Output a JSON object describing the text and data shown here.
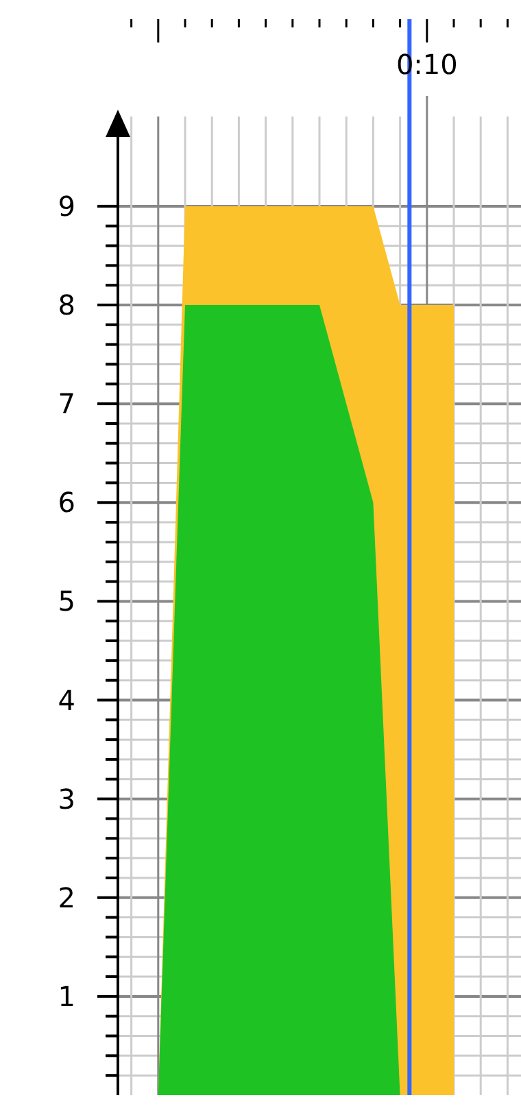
{
  "chart_data": {
    "type": "area",
    "categories": [
      null,
      null,
      null,
      null,
      null,
      null,
      null,
      null,
      null,
      null,
      null,
      "0:10",
      null,
      null,
      null
    ],
    "ylim": [
      0,
      9.7
    ],
    "yticks": [
      {
        "value": 0.2,
        "label": null
      },
      {
        "value": 0.4,
        "label": null
      },
      {
        "value": 0.6,
        "label": null
      },
      {
        "value": 0.8,
        "label": null
      },
      1,
      {
        "value": 1.2,
        "label": null
      },
      {
        "value": 1.4,
        "label": null
      },
      {
        "value": 1.6,
        "label": null
      },
      {
        "value": 1.8,
        "label": null
      },
      2,
      {
        "value": 2.2,
        "label": null
      },
      {
        "value": 2.4,
        "label": null
      },
      {
        "value": 2.6,
        "label": null
      },
      {
        "value": 2.8,
        "label": null
      },
      3,
      {
        "value": 3.2,
        "label": null
      },
      {
        "value": 3.4,
        "label": null
      },
      {
        "value": 3.6,
        "label": null
      },
      {
        "value": 3.8,
        "label": null
      },
      4,
      {
        "value": 4.2,
        "label": null
      },
      {
        "value": 4.4,
        "label": null
      },
      {
        "value": 4.6,
        "label": null
      },
      {
        "value": 4.8,
        "label": null
      },
      5,
      {
        "value": 5.2,
        "label": null
      },
      {
        "value": 5.4,
        "label": null
      },
      {
        "value": 5.6,
        "label": null
      },
      {
        "value": 5.8,
        "label": null
      },
      6,
      {
        "value": 6.2,
        "label": null
      },
      {
        "value": 6.4,
        "label": null
      },
      {
        "value": 6.6,
        "label": null
      },
      {
        "value": 6.8,
        "label": null
      },
      7,
      {
        "value": 7.2,
        "label": null
      },
      {
        "value": 7.4,
        "label": null
      },
      {
        "value": 7.6,
        "label": null
      },
      {
        "value": 7.8,
        "label": null
      },
      8,
      {
        "value": 8.2,
        "label": null
      },
      {
        "value": 8.4,
        "label": null
      },
      {
        "value": 8.6,
        "label": null
      },
      {
        "value": 8.8,
        "label": null
      },
      9
    ],
    "grid": true,
    "series": [
      {
        "color": "#fcc22c",
        "values": [
          null,
          0,
          9,
          9,
          9,
          9,
          9,
          9,
          9,
          9,
          8,
          8,
          8,
          null,
          null
        ]
      },
      {
        "color": "#1ec323",
        "values": [
          null,
          0,
          8,
          8,
          8,
          8,
          8,
          8,
          7,
          6,
          0,
          null,
          null,
          null,
          null
        ]
      }
    ]
  }
}
